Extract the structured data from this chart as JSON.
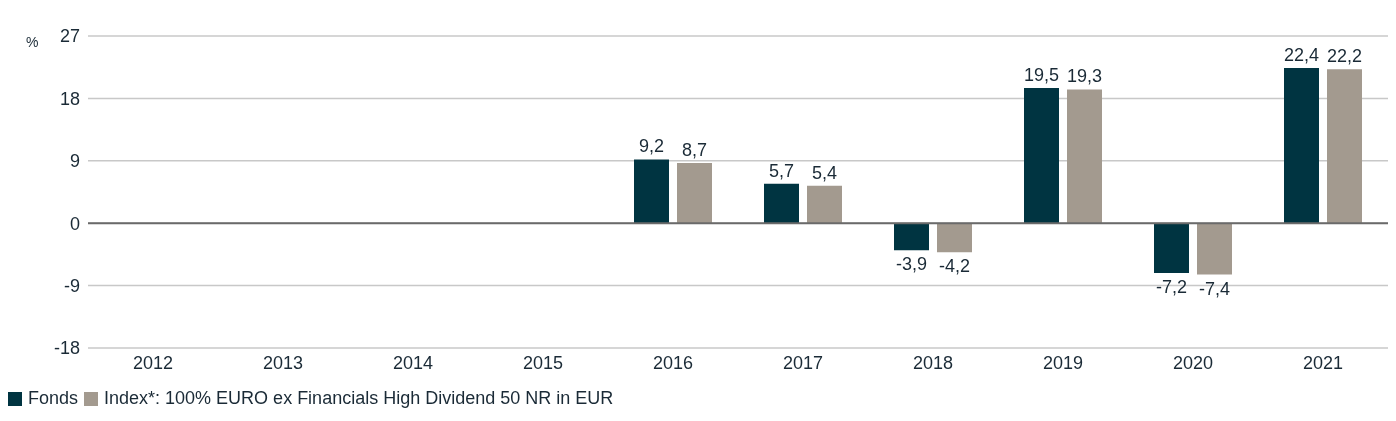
{
  "chart_data": {
    "type": "bar",
    "ylabel": "%",
    "categories": [
      "2012",
      "2013",
      "2014",
      "2015",
      "2016",
      "2017",
      "2018",
      "2019",
      "2020",
      "2021"
    ],
    "series": [
      {
        "name": "Fonds",
        "color": "#003441",
        "values": [
          null,
          null,
          null,
          null,
          9.2,
          5.7,
          -3.9,
          19.5,
          -7.2,
          22.4
        ],
        "value_labels": [
          null,
          null,
          null,
          null,
          "9,2",
          "5,7",
          "-3,9",
          "19,5",
          "-7,2",
          "22,4"
        ]
      },
      {
        "name": "Index*: 100% EURO ex Financials High Dividend 50 NR in EUR",
        "color": "#a39a8f",
        "values": [
          null,
          null,
          null,
          null,
          8.7,
          5.4,
          -4.2,
          19.3,
          -7.4,
          22.2
        ],
        "value_labels": [
          null,
          null,
          null,
          null,
          "8,7",
          "5,4",
          "-4,2",
          "19,3",
          "-7,4",
          "22,2"
        ]
      }
    ],
    "ylim": [
      -18,
      27
    ],
    "yticks": [
      -18,
      -9,
      0,
      9,
      18,
      27
    ],
    "grid": "y",
    "legend": "bottom left"
  }
}
